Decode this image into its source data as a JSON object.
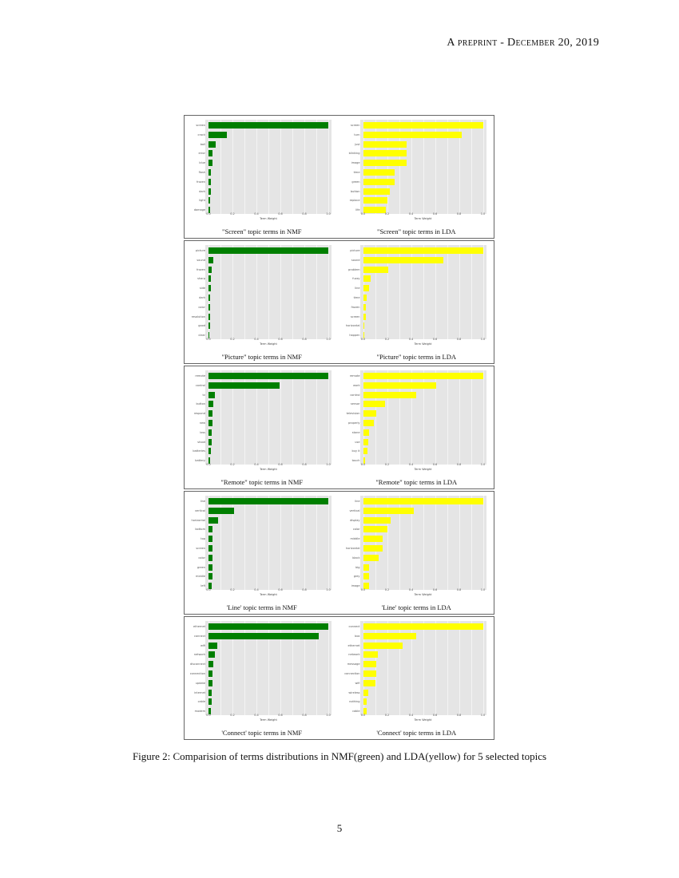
{
  "header": "A preprint - December 20, 2019",
  "figure_caption": "Figure 2: Comparision of terms distributions in NMF(green) and LDA(yellow) for 5 selected topics",
  "page_number": "5",
  "colors": {
    "nmf": "#007f00",
    "lda": "#ffff00",
    "panel_bg": "#e5e5e5"
  },
  "chart_data": [
    {
      "type": "bar",
      "title": "\"Screen\" topic terms in NMF",
      "xlabel": "Term Weight",
      "xlim": [
        0,
        1
      ],
      "ticks": [
        "0.0",
        "0.2",
        "0.4",
        "0.6",
        "0.8",
        "1.0"
      ],
      "color": "#007f00",
      "categories": [
        "screen",
        "crack",
        "ball",
        "error",
        "blue",
        "flash",
        "frozen",
        "dark",
        "light",
        "damage"
      ],
      "values": [
        1.0,
        0.15,
        0.06,
        0.03,
        0.03,
        0.02,
        0.02,
        0.02,
        0.015,
        0.015
      ]
    },
    {
      "type": "bar",
      "title": "\"Screen\" topic terms in LDA",
      "xlabel": "Term Weight",
      "xlim": [
        0,
        1
      ],
      "ticks": [
        "0.0",
        "0.2",
        "0.4",
        "0.6",
        "0.8",
        "1.0"
      ],
      "color": "#ffff00",
      "categories": [
        "screen",
        "turn",
        "just",
        "blinking",
        "image",
        "time",
        "green",
        "button",
        "replace",
        "life"
      ],
      "values": [
        1.0,
        0.82,
        0.36,
        0.36,
        0.36,
        0.26,
        0.26,
        0.22,
        0.2,
        0.19
      ]
    },
    {
      "type": "bar",
      "title": "\"Picture\" topic terms in NMF",
      "xlabel": "Term Weight",
      "xlim": [
        0,
        1
      ],
      "ticks": [
        "0.0",
        "0.2",
        "0.4",
        "0.6",
        "0.8",
        "1.0"
      ],
      "color": "#007f00",
      "categories": [
        "picture",
        "sound",
        "frozen",
        "sharp",
        "side",
        "dark",
        "color",
        "resolution",
        "good",
        "clear"
      ],
      "values": [
        1.0,
        0.04,
        0.025,
        0.02,
        0.018,
        0.015,
        0.012,
        0.012,
        0.01,
        0.008
      ]
    },
    {
      "type": "bar",
      "title": "\"Picture\" topic terms in LDA",
      "xlabel": "Term Weight",
      "xlim": [
        0,
        1
      ],
      "ticks": [
        "0.0",
        "0.2",
        "0.4",
        "0.6",
        "0.8",
        "1.0"
      ],
      "color": "#ffff00",
      "categories": [
        "picture",
        "sound",
        "problem",
        "fuzzy",
        "line",
        "time",
        "frozen",
        "screen",
        "horizontal",
        "happen"
      ],
      "values": [
        1.0,
        0.67,
        0.21,
        0.06,
        0.05,
        0.03,
        0.025,
        0.02,
        0.003,
        0.002
      ]
    },
    {
      "type": "bar",
      "title": "\"Remote\" topic terms in NMF",
      "xlabel": "Term Weight",
      "xlim": [
        0,
        1
      ],
      "ticks": [
        "0.0",
        "0.2",
        "0.4",
        "0.6",
        "0.8",
        "1.0"
      ],
      "color": "#007f00",
      "categories": [
        "remote",
        "control",
        "tv",
        "button",
        "respond",
        "new",
        "loss",
        "shoot",
        "batteries",
        "battery"
      ],
      "values": [
        1.0,
        0.59,
        0.05,
        0.04,
        0.035,
        0.03,
        0.028,
        0.025,
        0.02,
        0.015
      ]
    },
    {
      "type": "bar",
      "title": "\"Remote\" topic terms in LDA",
      "xlabel": "Term Weight",
      "xlim": [
        0,
        1
      ],
      "ticks": [
        "0.0",
        "0.2",
        "0.4",
        "0.6",
        "0.8",
        "1.0"
      ],
      "color": "#ffff00",
      "categories": [
        "remote",
        "work",
        "control",
        "sensor",
        "television",
        "properly",
        "stone",
        "use",
        "buy it",
        "touch"
      ],
      "values": [
        1.0,
        0.61,
        0.44,
        0.18,
        0.11,
        0.09,
        0.05,
        0.045,
        0.035,
        0.015
      ]
    },
    {
      "type": "bar",
      "title": "'Line' topic terms in NMF",
      "xlabel": "Term Weight",
      "xlim": [
        0,
        1
      ],
      "ticks": [
        "0.0",
        "0.2",
        "0.4",
        "0.6",
        "0.8",
        "1.0"
      ],
      "color": "#007f00",
      "categories": [
        "line",
        "vertical",
        "horizontal",
        "bottom",
        "top",
        "screen",
        "color",
        "green",
        "middle",
        "left"
      ],
      "values": [
        1.0,
        0.21,
        0.08,
        0.035,
        0.035,
        0.033,
        0.033,
        0.03,
        0.03,
        0.028
      ]
    },
    {
      "type": "bar",
      "title": "'Line' topic terms in LDA",
      "xlabel": "Term Weight",
      "xlim": [
        0,
        1
      ],
      "ticks": [
        "0.0",
        "0.2",
        "0.4",
        "0.6",
        "0.8",
        "1.0"
      ],
      "color": "#ffff00",
      "categories": [
        "line",
        "vertical",
        "display",
        "color",
        "middle",
        "horizontal",
        "black",
        "big",
        "grey",
        "image"
      ],
      "values": [
        1.0,
        0.42,
        0.23,
        0.2,
        0.16,
        0.16,
        0.13,
        0.05,
        0.05,
        0.05
      ]
    },
    {
      "type": "bar",
      "title": "'Connect' topic terms in NMF",
      "xlabel": "Term Weight",
      "xlim": [
        0,
        1
      ],
      "ticks": [
        "0.0",
        "0.2",
        "0.4",
        "0.6",
        "0.8",
        "1.0"
      ],
      "color": "#007f00",
      "categories": [
        "ethernet",
        "connect",
        "wifi",
        "network",
        "disconnect",
        "connection",
        "update",
        "internet",
        "cable",
        "modem"
      ],
      "values": [
        1.0,
        0.92,
        0.07,
        0.055,
        0.04,
        0.035,
        0.03,
        0.028,
        0.026,
        0.02
      ]
    },
    {
      "type": "bar",
      "title": "'Connect' topic terms in LDA",
      "xlabel": "Term Weight",
      "xlim": [
        0,
        1
      ],
      "ticks": [
        "0.0",
        "0.2",
        "0.4",
        "0.6",
        "0.8",
        "1.0"
      ],
      "color": "#ffff00",
      "categories": [
        "connect",
        "box",
        "ethernet",
        "network",
        "message",
        "connection",
        "wifi",
        "wireless",
        "nothing",
        "cable"
      ],
      "values": [
        1.0,
        0.44,
        0.33,
        0.12,
        0.11,
        0.11,
        0.1,
        0.04,
        0.03,
        0.03
      ]
    }
  ]
}
